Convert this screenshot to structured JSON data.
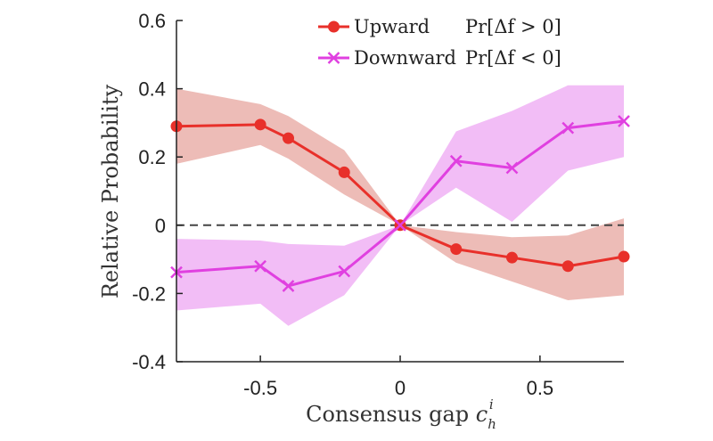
{
  "chart_data": {
    "type": "line",
    "xlabel": "Consensus gap c_h^i",
    "xlabel_main": "Consensus gap ",
    "xlabel_var": "c",
    "xlabel_sub": "h",
    "xlabel_sup": "i",
    "ylabel": "Relative Probability",
    "xlim": [
      -0.8,
      0.8
    ],
    "ylim": [
      -0.4,
      0.6
    ],
    "x_ticks": [
      -0.5,
      0,
      0.5
    ],
    "x_tick_labels": [
      "-0.5",
      "0",
      "0.5"
    ],
    "y_ticks": [
      -0.4,
      -0.2,
      0,
      0.2,
      0.4,
      0.6
    ],
    "y_tick_labels": [
      "-0.4",
      "-0.2",
      "0",
      "0.2",
      "0.4",
      "0.6"
    ],
    "grid": false,
    "legend_position": "top-right",
    "reference_line": {
      "y": 0,
      "style": "dashed",
      "color": "#444444"
    },
    "x": [
      -0.8,
      -0.5,
      -0.4,
      -0.2,
      0,
      0.2,
      0.4,
      0.6,
      0.8
    ],
    "series": [
      {
        "name": "Upward",
        "legend_formula": "Pr[Δf > 0]",
        "color": "#e8302a",
        "band_color": "#eab0aa",
        "marker": "circle",
        "values": [
          0.29,
          0.295,
          0.255,
          0.155,
          0.0,
          -0.07,
          -0.095,
          -0.12,
          -0.092
        ],
        "band_upper": [
          0.4,
          0.355,
          0.32,
          0.22,
          0.0,
          -0.02,
          -0.035,
          -0.03,
          0.02
        ],
        "band_lower": [
          0.18,
          0.235,
          0.195,
          0.09,
          0.0,
          -0.11,
          -0.165,
          -0.22,
          -0.205
        ]
      },
      {
        "name": "Downward",
        "legend_formula": "Pr[Δf < 0]",
        "color": "#e040e0",
        "band_color": "#f0b2f4",
        "marker": "x",
        "values": [
          -0.138,
          -0.12,
          -0.178,
          -0.135,
          0.0,
          0.188,
          0.168,
          0.285,
          0.305
        ],
        "band_upper": [
          -0.04,
          -0.045,
          -0.055,
          -0.06,
          0.0,
          0.275,
          0.335,
          0.41,
          0.41
        ],
        "band_lower": [
          -0.25,
          -0.23,
          -0.295,
          -0.205,
          0.0,
          0.11,
          0.01,
          0.16,
          0.2
        ]
      }
    ]
  }
}
